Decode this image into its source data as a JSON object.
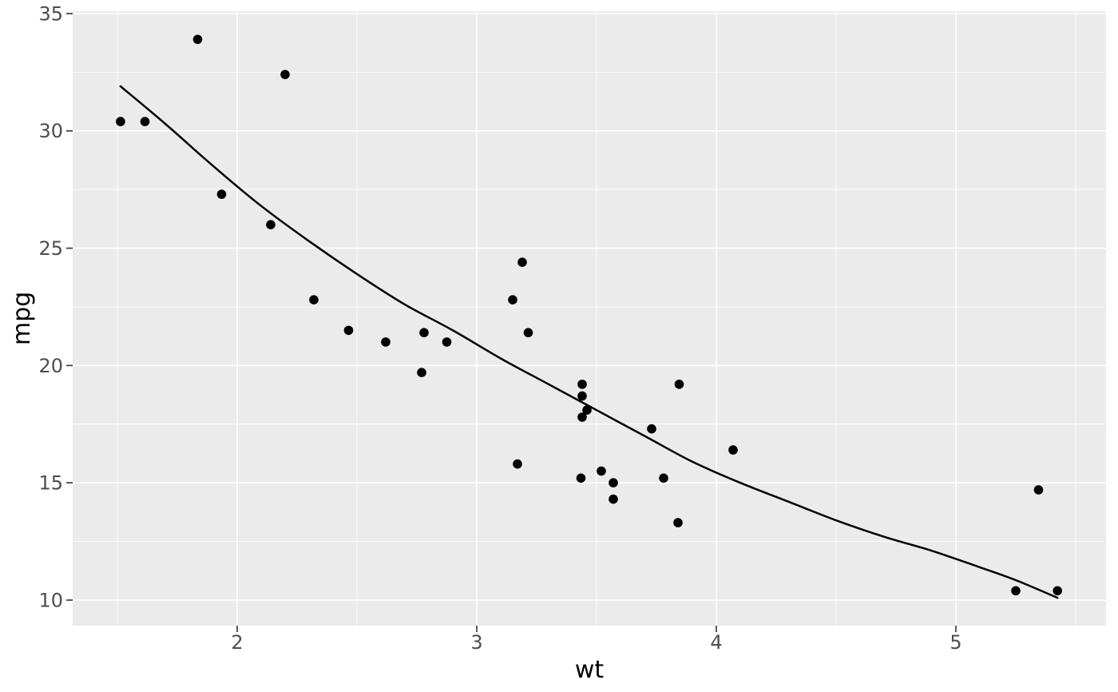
{
  "figure": {
    "background": "#FFFFFF"
  },
  "chart_data": {
    "type": "scatter",
    "title": "",
    "xlabel": "wt",
    "ylabel": "mpg",
    "legend": "none",
    "grid": "major-and-minor",
    "x_ticks": [
      2,
      3,
      4,
      5
    ],
    "y_ticks": [
      10,
      15,
      20,
      25,
      30,
      35
    ],
    "x_minor_ticks": [
      1.5,
      2.5,
      3.5,
      4.5,
      5.5
    ],
    "y_minor_ticks": [
      12.5,
      17.5,
      22.5,
      27.5,
      32.5
    ],
    "xlim": [
      1.3133,
      5.6267
    ],
    "ylim": [
      8.91,
      35.102
    ],
    "points": [
      [
        2.62,
        21.0
      ],
      [
        2.875,
        21.0
      ],
      [
        2.32,
        22.8
      ],
      [
        3.215,
        21.4
      ],
      [
        3.44,
        18.7
      ],
      [
        3.46,
        18.1
      ],
      [
        3.57,
        14.3
      ],
      [
        3.19,
        24.4
      ],
      [
        3.15,
        22.8
      ],
      [
        3.44,
        19.2
      ],
      [
        3.44,
        17.8
      ],
      [
        4.07,
        16.4
      ],
      [
        3.73,
        17.3
      ],
      [
        3.78,
        15.2
      ],
      [
        5.25,
        10.4
      ],
      [
        5.424,
        10.4
      ],
      [
        5.345,
        14.7
      ],
      [
        2.2,
        32.4
      ],
      [
        1.615,
        30.4
      ],
      [
        1.835,
        33.9
      ],
      [
        2.465,
        21.5
      ],
      [
        3.52,
        15.5
      ],
      [
        3.435,
        15.2
      ],
      [
        3.84,
        13.3
      ],
      [
        3.845,
        19.2
      ],
      [
        1.935,
        27.3
      ],
      [
        2.14,
        26.0
      ],
      [
        1.513,
        30.4
      ],
      [
        3.17,
        15.8
      ],
      [
        2.77,
        19.7
      ],
      [
        3.57,
        15.0
      ],
      [
        2.78,
        21.4
      ]
    ],
    "smooth_line": [
      [
        1.513,
        31.9
      ],
      [
        1.7,
        30.3
      ],
      [
        1.9,
        28.5
      ],
      [
        2.1,
        26.8
      ],
      [
        2.3,
        25.3
      ],
      [
        2.5,
        23.9
      ],
      [
        2.7,
        22.6
      ],
      [
        2.9,
        21.5
      ],
      [
        3.1,
        20.3
      ],
      [
        3.3,
        19.2
      ],
      [
        3.5,
        18.1
      ],
      [
        3.7,
        17.0
      ],
      [
        3.9,
        15.9
      ],
      [
        4.1,
        15.0
      ],
      [
        4.3,
        14.2
      ],
      [
        4.5,
        13.4
      ],
      [
        4.7,
        12.7
      ],
      [
        4.9,
        12.1
      ],
      [
        5.1,
        11.4
      ],
      [
        5.25,
        10.85
      ],
      [
        5.424,
        10.1
      ]
    ],
    "style": {
      "panel_bg": "#EBEBEB",
      "grid_color": "#FFFFFF",
      "point_color": "#000000",
      "line_color": "#000000",
      "tick_label_color": "#4D4D4D",
      "axis_title_color": "#000000",
      "tick_mark_color": "#333333"
    }
  }
}
